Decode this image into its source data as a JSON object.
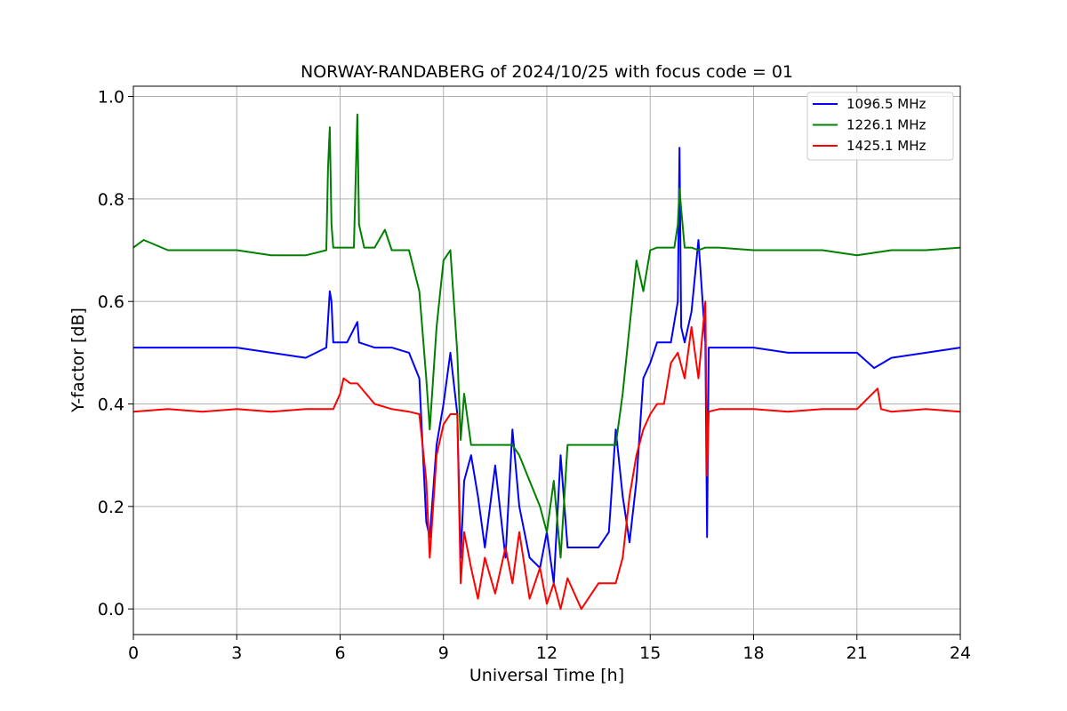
{
  "chart_data": {
    "type": "line",
    "title": "NORWAY-RANDABERG of 2024/10/25 with focus code = 01",
    "xlabel": "Universal Time [h]",
    "ylabel": "Y-factor [dB]",
    "xlim": [
      0,
      24
    ],
    "ylim": [
      -0.05,
      1.02
    ],
    "xticks": [
      0,
      3,
      6,
      9,
      12,
      15,
      18,
      21,
      24
    ],
    "yticks": [
      0.0,
      0.2,
      0.4,
      0.6,
      0.8,
      1.0
    ],
    "xtick_labels": [
      "0",
      "3",
      "6",
      "9",
      "12",
      "15",
      "18",
      "21",
      "24"
    ],
    "ytick_labels": [
      "0.0",
      "0.2",
      "0.4",
      "0.6",
      "0.8",
      "1.0"
    ],
    "grid": true,
    "legend_position": "top-right",
    "series": [
      {
        "name": "1096.5 MHz",
        "color": "#0000ff",
        "x": [
          0,
          1,
          2,
          3,
          4,
          5,
          5.6,
          5.7,
          5.75,
          5.8,
          6,
          6.2,
          6.5,
          6.55,
          7,
          7.5,
          8,
          8.3,
          8.5,
          8.6,
          8.8,
          9,
          9.2,
          9.4,
          9.5,
          9.6,
          9.8,
          10,
          10.2,
          10.5,
          10.8,
          11,
          11.2,
          11.5,
          11.8,
          12,
          12.2,
          12.4,
          12.6,
          13,
          13.5,
          13.8,
          14,
          14.2,
          14.4,
          14.6,
          14.8,
          15,
          15.2,
          15.4,
          15.6,
          15.8,
          15.85,
          15.9,
          16,
          16.2,
          16.4,
          16.6,
          16.65,
          16.7,
          17,
          18,
          19,
          20,
          21,
          21.5,
          22,
          23,
          24
        ],
        "y": [
          0.51,
          0.51,
          0.51,
          0.51,
          0.5,
          0.49,
          0.51,
          0.62,
          0.6,
          0.52,
          0.52,
          0.52,
          0.56,
          0.52,
          0.51,
          0.51,
          0.5,
          0.45,
          0.17,
          0.14,
          0.32,
          0.4,
          0.5,
          0.38,
          0.1,
          0.25,
          0.3,
          0.22,
          0.12,
          0.28,
          0.1,
          0.35,
          0.2,
          0.1,
          0.08,
          0.15,
          0.05,
          0.3,
          0.12,
          0.12,
          0.12,
          0.15,
          0.35,
          0.22,
          0.13,
          0.25,
          0.45,
          0.48,
          0.52,
          0.52,
          0.52,
          0.6,
          0.9,
          0.55,
          0.52,
          0.58,
          0.72,
          0.52,
          0.14,
          0.51,
          0.51,
          0.51,
          0.5,
          0.5,
          0.5,
          0.47,
          0.49,
          0.5,
          0.51
        ]
      },
      {
        "name": "1226.1 MHz",
        "color": "#008000",
        "x": [
          0,
          0.3,
          1,
          2,
          3,
          4,
          5,
          5.6,
          5.65,
          5.7,
          5.75,
          5.8,
          6,
          6.4,
          6.5,
          6.55,
          6.7,
          7,
          7.3,
          7.5,
          8,
          8.3,
          8.5,
          8.6,
          8.8,
          9,
          9.2,
          9.4,
          9.5,
          9.6,
          9.8,
          10,
          10.5,
          11,
          11.2,
          11.5,
          11.8,
          12,
          12.2,
          12.4,
          12.6,
          13,
          13.5,
          14,
          14.2,
          14.4,
          14.6,
          14.8,
          15,
          15.2,
          15.5,
          15.7,
          15.8,
          15.85,
          15.9,
          16,
          16.2,
          16.4,
          16.6,
          17,
          18,
          19,
          20,
          21,
          22,
          23,
          24
        ],
        "y": [
          0.705,
          0.72,
          0.7,
          0.7,
          0.7,
          0.69,
          0.69,
          0.7,
          0.86,
          0.94,
          0.75,
          0.705,
          0.705,
          0.705,
          0.965,
          0.75,
          0.705,
          0.705,
          0.74,
          0.7,
          0.7,
          0.62,
          0.45,
          0.35,
          0.55,
          0.68,
          0.7,
          0.5,
          0.33,
          0.42,
          0.32,
          0.32,
          0.32,
          0.32,
          0.3,
          0.25,
          0.2,
          0.15,
          0.25,
          0.1,
          0.32,
          0.32,
          0.32,
          0.32,
          0.42,
          0.55,
          0.68,
          0.62,
          0.7,
          0.705,
          0.705,
          0.705,
          0.75,
          0.82,
          0.78,
          0.705,
          0.705,
          0.7,
          0.705,
          0.705,
          0.7,
          0.7,
          0.7,
          0.69,
          0.7,
          0.7,
          0.705
        ]
      },
      {
        "name": "1425.1 MHz",
        "color": "#ff0000",
        "x": [
          0,
          1,
          2,
          3,
          4,
          5,
          5.8,
          6,
          6.1,
          6.3,
          6.5,
          7,
          7.5,
          8,
          8.3,
          8.5,
          8.6,
          8.8,
          9,
          9.2,
          9.4,
          9.5,
          9.6,
          9.8,
          10,
          10.2,
          10.5,
          10.8,
          11,
          11.2,
          11.5,
          11.8,
          12,
          12.2,
          12.4,
          12.6,
          13,
          13.5,
          14,
          14.2,
          14.4,
          14.6,
          14.8,
          15,
          15.2,
          15.4,
          15.6,
          15.8,
          16,
          16.2,
          16.4,
          16.6,
          16.65,
          16.7,
          17,
          18,
          19,
          20,
          21,
          21.6,
          21.7,
          22,
          23,
          24
        ],
        "y": [
          0.385,
          0.39,
          0.385,
          0.39,
          0.385,
          0.39,
          0.39,
          0.42,
          0.45,
          0.44,
          0.44,
          0.4,
          0.39,
          0.385,
          0.38,
          0.25,
          0.1,
          0.3,
          0.36,
          0.38,
          0.38,
          0.05,
          0.15,
          0.08,
          0.02,
          0.1,
          0.03,
          0.12,
          0.05,
          0.15,
          0.02,
          0.08,
          0.01,
          0.05,
          0.0,
          0.06,
          0.0,
          0.05,
          0.05,
          0.1,
          0.22,
          0.3,
          0.35,
          0.38,
          0.4,
          0.4,
          0.48,
          0.5,
          0.45,
          0.55,
          0.45,
          0.6,
          0.26,
          0.385,
          0.39,
          0.39,
          0.385,
          0.39,
          0.39,
          0.43,
          0.39,
          0.385,
          0.39,
          0.385
        ]
      }
    ]
  }
}
